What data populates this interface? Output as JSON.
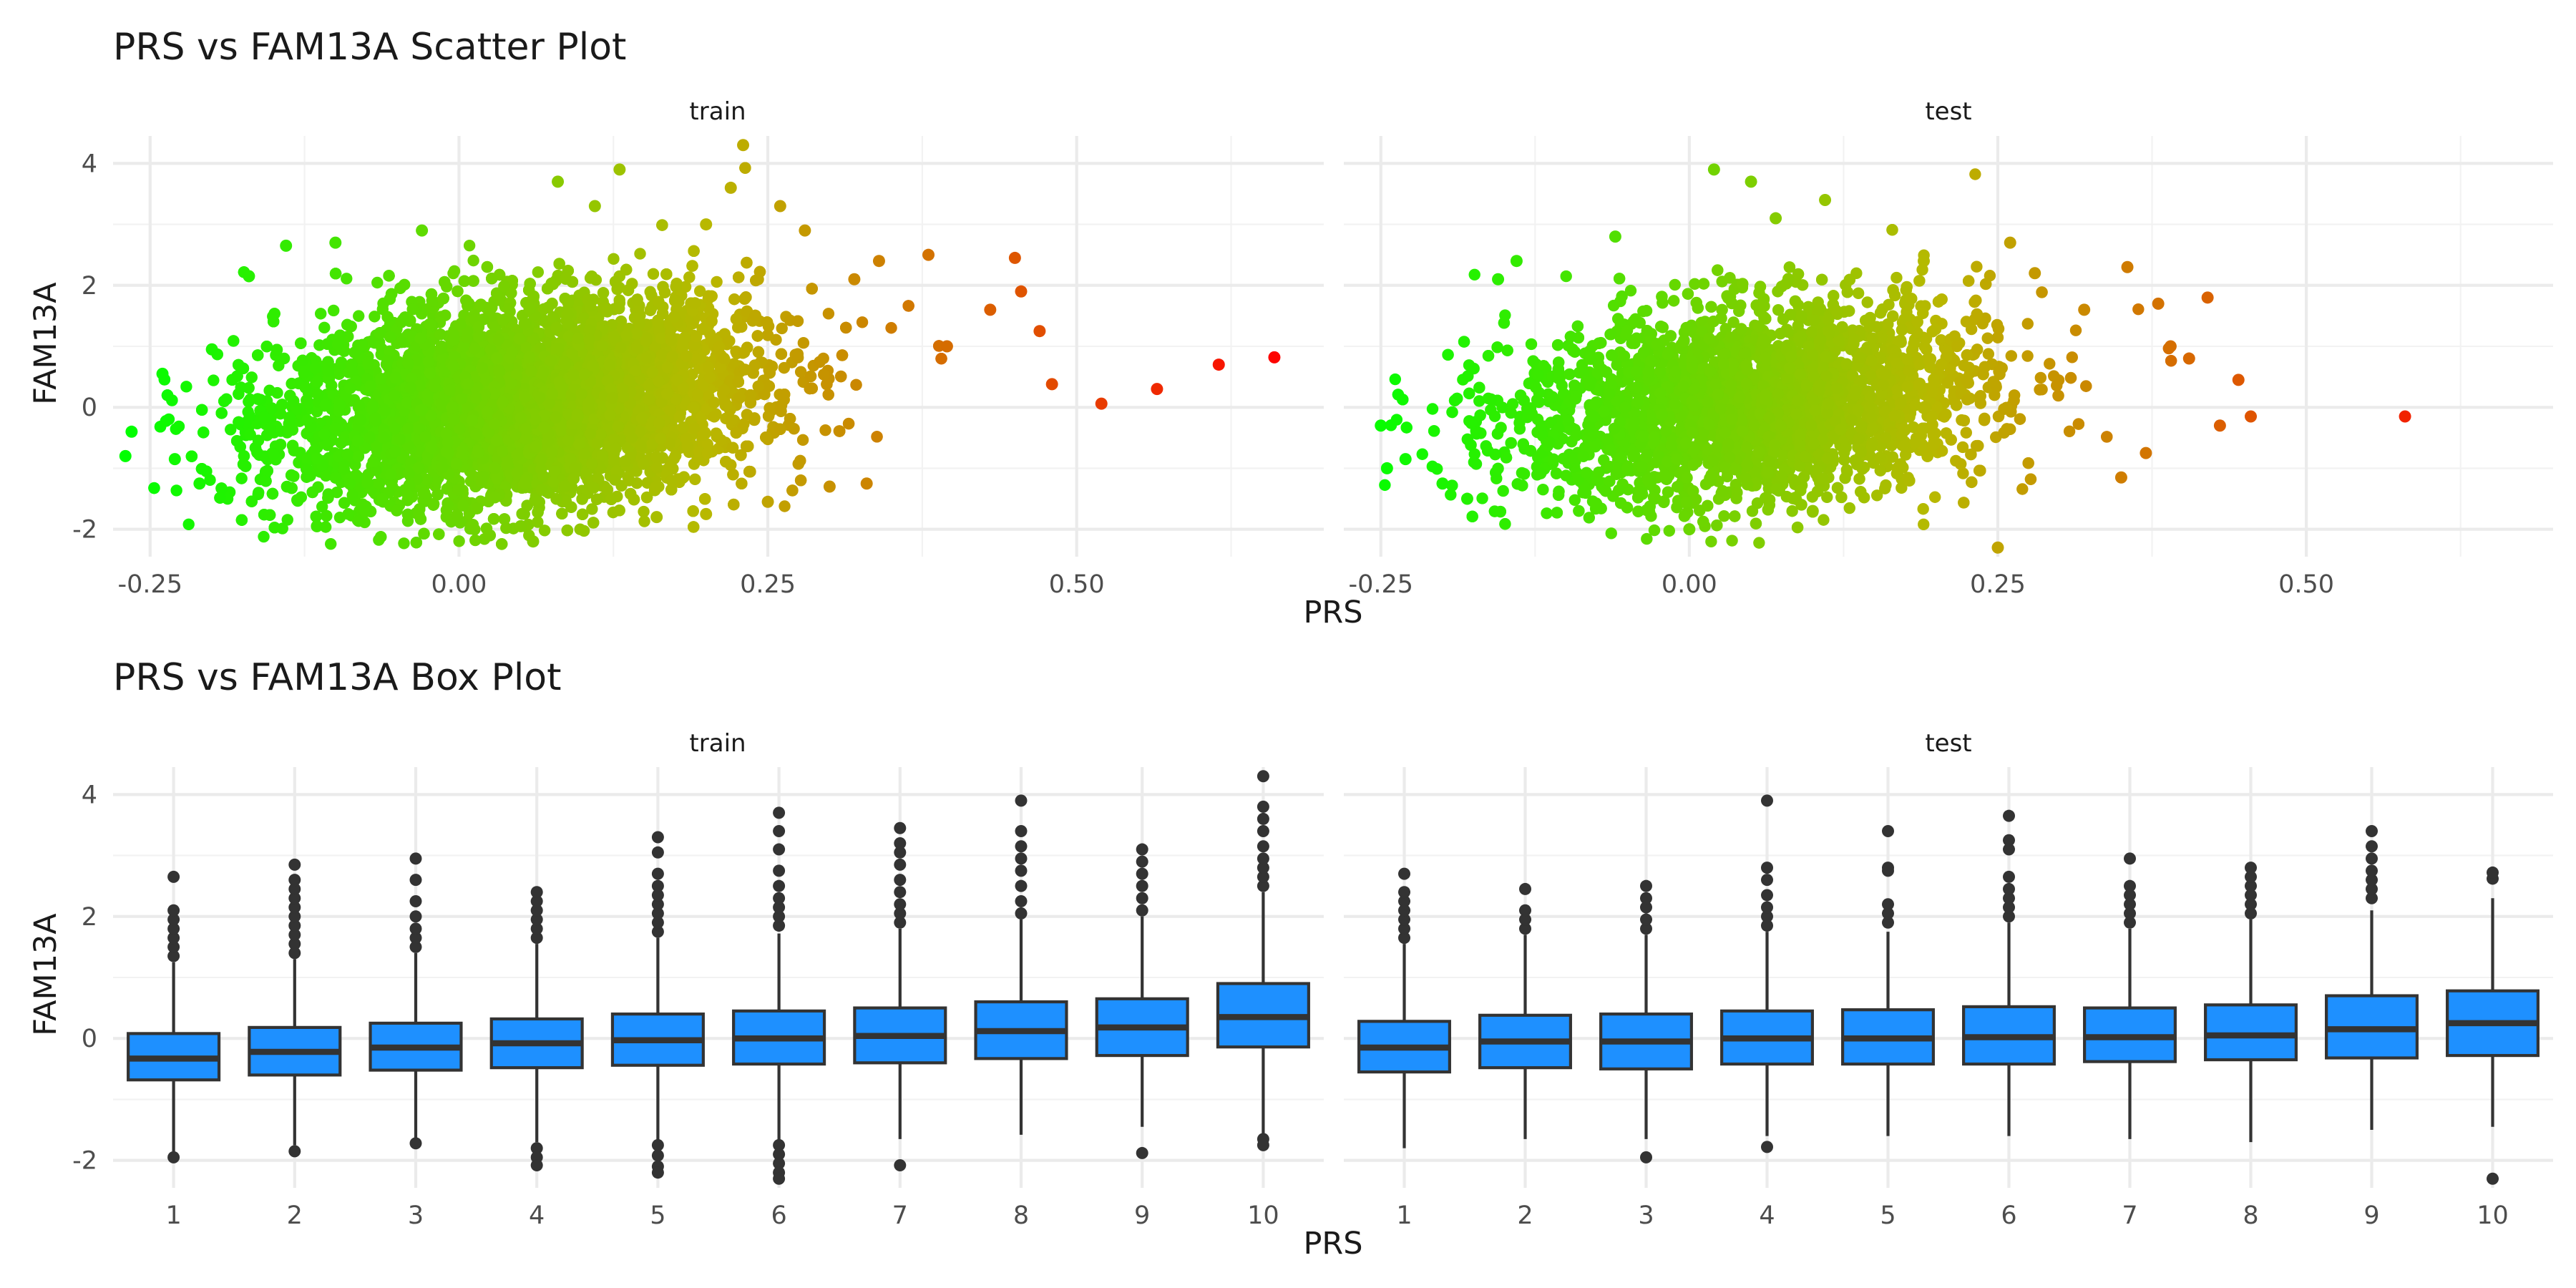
{
  "colors": {
    "low": "#00FF00",
    "mid": "#B8B800",
    "high": "#FF0000",
    "box_fill": "#1E90FF",
    "box_line": "#333333",
    "outlier": "#333333"
  },
  "chart_data": [
    {
      "type": "scatter",
      "title": "PRS vs FAM13A Scatter Plot",
      "xlabel": "PRS",
      "ylabel": "FAM13A",
      "xlim": [
        -0.28,
        0.7
      ],
      "ylim": [
        -2.45,
        4.45
      ],
      "x_ticks": [
        -0.25,
        0.0,
        0.25,
        0.5
      ],
      "x_tick_labels": [
        "-0.25",
        "0.00",
        "0.25",
        "0.50"
      ],
      "y_ticks": [
        -2,
        0,
        2,
        4
      ],
      "y_tick_labels": [
        "-2",
        "0",
        "2",
        "4"
      ],
      "color_scale": {
        "variable": "PRS",
        "range": [
          -0.27,
          0.67
        ]
      },
      "panels": [
        {
          "name": "train",
          "cloud": {
            "x_mean": 0.05,
            "x_sd": 0.095,
            "y_mean": 0.05,
            "y_sd": 0.82,
            "slope": 2.0,
            "approx_count": 9000
          },
          "points": [
            {
              "x": 0.66,
              "y": 0.82
            },
            {
              "x": 0.615,
              "y": 0.7
            },
            {
              "x": 0.565,
              "y": 0.3
            },
            {
              "x": 0.52,
              "y": 0.06
            },
            {
              "x": 0.48,
              "y": 0.38
            },
            {
              "x": 0.47,
              "y": 1.25
            },
            {
              "x": 0.455,
              "y": 1.9
            },
            {
              "x": 0.45,
              "y": 2.45
            },
            {
              "x": 0.43,
              "y": 1.6
            },
            {
              "x": 0.395,
              "y": 1.0
            },
            {
              "x": 0.38,
              "y": 2.5
            },
            {
              "x": 0.34,
              "y": 2.4
            },
            {
              "x": 0.33,
              "y": -1.25
            },
            {
              "x": 0.3,
              "y": -1.3
            },
            {
              "x": 0.28,
              "y": 2.9
            },
            {
              "x": 0.26,
              "y": 3.3
            },
            {
              "x": 0.23,
              "y": 4.3
            },
            {
              "x": 0.22,
              "y": 3.6
            },
            {
              "x": 0.2,
              "y": 3.0
            },
            {
              "x": 0.13,
              "y": 3.9
            },
            {
              "x": 0.11,
              "y": 3.3
            },
            {
              "x": 0.08,
              "y": 3.7
            },
            {
              "x": 0.06,
              "y": -2.2
            },
            {
              "x": 0.05,
              "y": -1.95
            },
            {
              "x": 0.025,
              "y": -2.1
            },
            {
              "x": 0.16,
              "y": -1.8
            },
            {
              "x": 0.2,
              "y": -1.75
            },
            {
              "x": 0.25,
              "y": -1.55
            },
            {
              "x": -0.03,
              "y": 2.9
            },
            {
              "x": -0.1,
              "y": 2.7
            },
            {
              "x": -0.14,
              "y": 2.65
            },
            {
              "x": -0.115,
              "y": -1.95
            },
            {
              "x": -0.21,
              "y": -1.25
            },
            {
              "x": -0.27,
              "y": -0.8
            },
            {
              "x": -0.265,
              "y": -0.4
            },
            {
              "x": -0.24,
              "y": 0.55
            },
            {
              "x": -0.2,
              "y": 0.95
            },
            {
              "x": -0.23,
              "y": -0.85
            },
            {
              "x": -0.17,
              "y": 2.15
            },
            {
              "x": 0.32,
              "y": 2.1
            }
          ]
        },
        {
          "name": "test",
          "cloud": {
            "x_mean": 0.05,
            "x_sd": 0.095,
            "y_mean": 0.05,
            "y_sd": 0.8,
            "slope": 1.9,
            "approx_count": 4000
          },
          "points": [
            {
              "x": 0.58,
              "y": -0.15
            },
            {
              "x": 0.455,
              "y": -0.15
            },
            {
              "x": 0.445,
              "y": 0.45
            },
            {
              "x": 0.43,
              "y": -0.3
            },
            {
              "x": 0.42,
              "y": 1.8
            },
            {
              "x": 0.405,
              "y": 0.8
            },
            {
              "x": 0.39,
              "y": 1.0
            },
            {
              "x": 0.38,
              "y": 1.7
            },
            {
              "x": 0.37,
              "y": -0.75
            },
            {
              "x": 0.355,
              "y": 2.3
            },
            {
              "x": 0.35,
              "y": -1.15
            },
            {
              "x": 0.32,
              "y": 1.6
            },
            {
              "x": 0.26,
              "y": 2.7
            },
            {
              "x": 0.25,
              "y": -2.3
            },
            {
              "x": 0.11,
              "y": 3.4
            },
            {
              "x": 0.07,
              "y": 3.1
            },
            {
              "x": 0.05,
              "y": 3.7
            },
            {
              "x": 0.02,
              "y": 3.9
            },
            {
              "x": 0.0,
              "y": -2.0
            },
            {
              "x": 0.1,
              "y": -1.7
            },
            {
              "x": -0.14,
              "y": 2.4
            },
            {
              "x": -0.155,
              "y": 2.1
            },
            {
              "x": -0.25,
              "y": -0.3
            },
            {
              "x": -0.245,
              "y": -1.0
            },
            {
              "x": -0.23,
              "y": -0.85
            },
            {
              "x": -0.2,
              "y": -1.25
            },
            {
              "x": -0.18,
              "y": -1.5
            },
            {
              "x": -0.06,
              "y": 2.8
            },
            {
              "x": 0.19,
              "y": 2.4
            },
            {
              "x": 0.28,
              "y": 2.2
            }
          ]
        }
      ]
    },
    {
      "type": "box",
      "title": "PRS vs FAM13A Box Plot",
      "xlabel": "PRS",
      "ylabel": "FAM13A",
      "categories": [
        "1",
        "2",
        "3",
        "4",
        "5",
        "6",
        "7",
        "8",
        "9",
        "10"
      ],
      "ylim": [
        -2.45,
        4.45
      ],
      "y_ticks": [
        -2,
        0,
        2,
        4
      ],
      "y_tick_labels": [
        "-2",
        "0",
        "2",
        "4"
      ],
      "panels": [
        {
          "name": "train",
          "boxes": [
            {
              "q1": -0.68,
              "median": -0.33,
              "q3": 0.08,
              "low": -1.9,
              "high": 1.25,
              "outliers": [
                1.35,
                1.5,
                1.65,
                1.8,
                1.95,
                2.1,
                2.65,
                -1.95
              ]
            },
            {
              "q1": -0.6,
              "median": -0.22,
              "q3": 0.18,
              "low": -1.75,
              "high": 1.3,
              "outliers": [
                1.4,
                1.55,
                1.7,
                1.85,
                2.0,
                2.15,
                2.3,
                2.45,
                2.6,
                2.85,
                -1.85
              ]
            },
            {
              "q1": -0.52,
              "median": -0.15,
              "q3": 0.25,
              "low": -1.65,
              "high": 1.4,
              "outliers": [
                1.5,
                1.65,
                1.8,
                2.0,
                2.25,
                2.6,
                2.95,
                -1.72
              ]
            },
            {
              "q1": -0.48,
              "median": -0.08,
              "q3": 0.32,
              "low": -1.7,
              "high": 1.55,
              "outliers": [
                1.65,
                1.8,
                1.95,
                2.1,
                2.25,
                2.4,
                -1.8,
                -1.95,
                -2.08
              ]
            },
            {
              "q1": -0.44,
              "median": -0.03,
              "q3": 0.4,
              "low": -1.7,
              "high": 1.65,
              "outliers": [
                1.75,
                1.9,
                2.05,
                2.2,
                2.35,
                2.5,
                2.7,
                3.05,
                3.3,
                -1.75,
                -1.92,
                -2.1,
                -2.2
              ]
            },
            {
              "q1": -0.42,
              "median": 0.0,
              "q3": 0.45,
              "low": -1.7,
              "high": 1.72,
              "outliers": [
                1.85,
                2.0,
                2.15,
                2.3,
                2.5,
                2.75,
                3.1,
                3.4,
                3.7,
                -1.75,
                -1.9,
                -2.05,
                -2.2,
                -2.3
              ]
            },
            {
              "q1": -0.4,
              "median": 0.04,
              "q3": 0.5,
              "low": -1.65,
              "high": 1.8,
              "outliers": [
                1.9,
                2.05,
                2.2,
                2.4,
                2.6,
                2.85,
                3.05,
                3.2,
                3.45,
                -2.08
              ]
            },
            {
              "q1": -0.33,
              "median": 0.12,
              "q3": 0.6,
              "low": -1.58,
              "high": 1.95,
              "outliers": [
                2.05,
                2.25,
                2.5,
                2.75,
                2.95,
                3.15,
                3.4,
                3.9
              ]
            },
            {
              "q1": -0.28,
              "median": 0.18,
              "q3": 0.65,
              "low": -1.45,
              "high": 2.0,
              "outliers": [
                2.1,
                2.3,
                2.5,
                2.7,
                2.9,
                3.1,
                -1.88
              ]
            },
            {
              "q1": -0.14,
              "median": 0.35,
              "q3": 0.9,
              "low": -1.6,
              "high": 2.4,
              "outliers": [
                2.5,
                2.65,
                2.8,
                2.95,
                3.15,
                3.4,
                3.6,
                3.8,
                4.3,
                -1.65,
                -1.75
              ]
            }
          ]
        },
        {
          "name": "test",
          "boxes": [
            {
              "q1": -0.55,
              "median": -0.15,
              "q3": 0.28,
              "low": -1.8,
              "high": 1.55,
              "outliers": [
                1.65,
                1.8,
                1.95,
                2.1,
                2.25,
                2.4,
                2.7
              ]
            },
            {
              "q1": -0.48,
              "median": -0.05,
              "q3": 0.38,
              "low": -1.65,
              "high": 1.7,
              "outliers": [
                1.8,
                1.95,
                2.1,
                2.45
              ]
            },
            {
              "q1": -0.5,
              "median": -0.05,
              "q3": 0.4,
              "low": -1.65,
              "high": 1.7,
              "outliers": [
                1.8,
                1.95,
                2.15,
                2.3,
                2.5,
                -1.95
              ]
            },
            {
              "q1": -0.42,
              "median": 0.0,
              "q3": 0.45,
              "low": -1.6,
              "high": 1.75,
              "outliers": [
                1.85,
                2.0,
                2.15,
                2.35,
                2.6,
                2.8,
                3.9,
                -1.78
              ]
            },
            {
              "q1": -0.42,
              "median": 0.0,
              "q3": 0.47,
              "low": -1.6,
              "high": 1.75,
              "outliers": [
                1.9,
                2.05,
                2.2,
                2.75,
                2.8,
                3.4
              ]
            },
            {
              "q1": -0.42,
              "median": 0.02,
              "q3": 0.52,
              "low": -1.6,
              "high": 1.9,
              "outliers": [
                2.0,
                2.15,
                2.3,
                2.45,
                2.65,
                3.1,
                3.25,
                3.65
              ]
            },
            {
              "q1": -0.38,
              "median": 0.02,
              "q3": 0.5,
              "low": -1.65,
              "high": 1.8,
              "outliers": [
                1.9,
                2.05,
                2.2,
                2.35,
                2.5,
                2.95
              ]
            },
            {
              "q1": -0.35,
              "median": 0.05,
              "q3": 0.55,
              "low": -1.7,
              "high": 1.95,
              "outliers": [
                2.05,
                2.2,
                2.35,
                2.5,
                2.65,
                2.8
              ]
            },
            {
              "q1": -0.32,
              "median": 0.15,
              "q3": 0.7,
              "low": -1.5,
              "high": 2.1,
              "outliers": [
                2.3,
                2.45,
                2.6,
                2.75,
                2.95,
                3.15,
                3.4
              ]
            },
            {
              "q1": -0.28,
              "median": 0.25,
              "q3": 0.78,
              "low": -1.45,
              "high": 2.3,
              "outliers": [
                2.62,
                2.72,
                -2.3
              ]
            }
          ]
        }
      ]
    }
  ]
}
